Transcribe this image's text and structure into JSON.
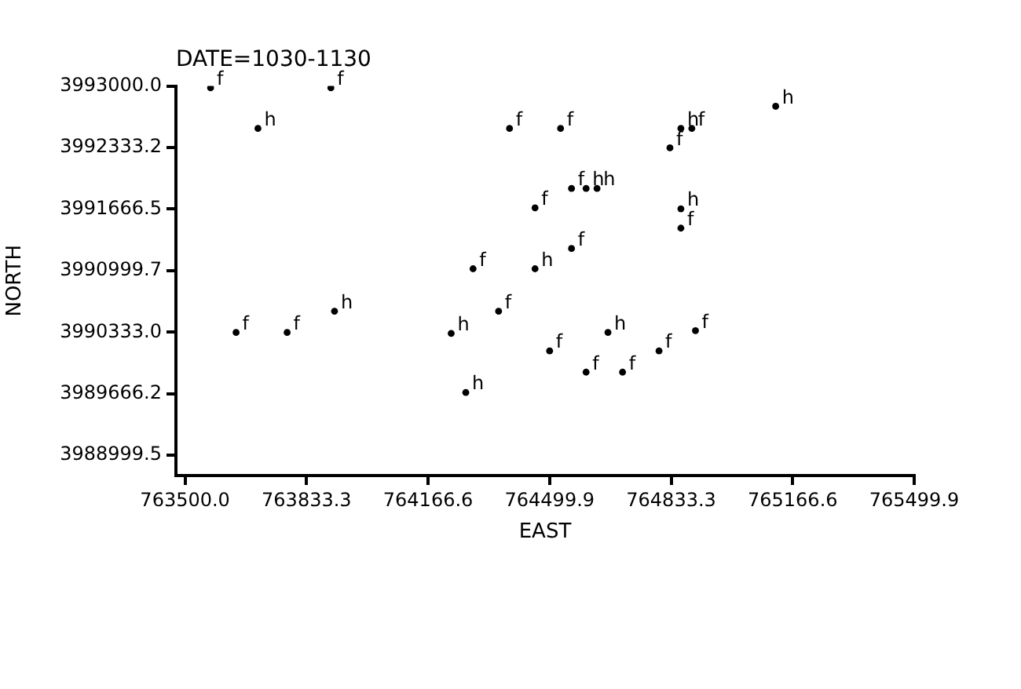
{
  "chart_data": {
    "type": "scatter",
    "title": "DATE=1030-1130",
    "xlabel": "EAST",
    "marker": "circle",
    "ylabel": "NORTH",
    "xlim": [
      763475,
      765499.9
    ],
    "ylim": [
      3988780,
      3993000
    ],
    "xticks": [
      {
        "value": 763500,
        "label": "763500.0"
      },
      {
        "value": 763833.3,
        "label": "763833.3"
      },
      {
        "value": 764166.6,
        "label": "764166.6"
      },
      {
        "value": 764499.9,
        "label": "764499.9"
      },
      {
        "value": 764833.3,
        "label": "764833.3"
      },
      {
        "value": 765166.6,
        "label": "765166.6"
      },
      {
        "value": 765499.9,
        "label": "765499.9"
      }
    ],
    "yticks": [
      {
        "value": 3988999.5,
        "label": "3988999.5"
      },
      {
        "value": 3989666.2,
        "label": "3989666.2"
      },
      {
        "value": 3990333,
        "label": "3990333.0"
      },
      {
        "value": 3990999.7,
        "label": "3990999.7"
      },
      {
        "value": 3991666.5,
        "label": "3991666.5"
      },
      {
        "value": 3992333.2,
        "label": "3992333.2"
      },
      {
        "value": 3993000,
        "label": "3993000.0"
      }
    ],
    "series": [
      {
        "name": "f",
        "color": "#000000",
        "x": [
          763570,
          763900,
          764390,
          764290,
          764360,
          763640,
          763780,
          764530,
          764890,
          764830,
          764560,
          764460,
          764860,
          764560,
          764900,
          764500,
          764800,
          764600,
          764700
        ],
        "values": [
          3992980,
          3992980,
          3992540,
          3991020,
          3990560,
          3990330,
          3990330,
          3992540,
          3992540,
          3992330,
          3991890,
          3991680,
          3991460,
          3991240,
          3990350,
          3990130,
          3990130,
          3989900,
          3989900
        ]
      },
      {
        "name": "h",
        "color": "#000000",
        "x": [
          763700,
          763910,
          764230,
          764270,
          765120,
          764860,
          764600,
          764630,
          764860,
          764460,
          764660
        ],
        "values": [
          3992540,
          3990560,
          3990320,
          3989680,
          3992780,
          3992540,
          3991890,
          3991890,
          3991670,
          3991020,
          3990330
        ]
      }
    ]
  }
}
